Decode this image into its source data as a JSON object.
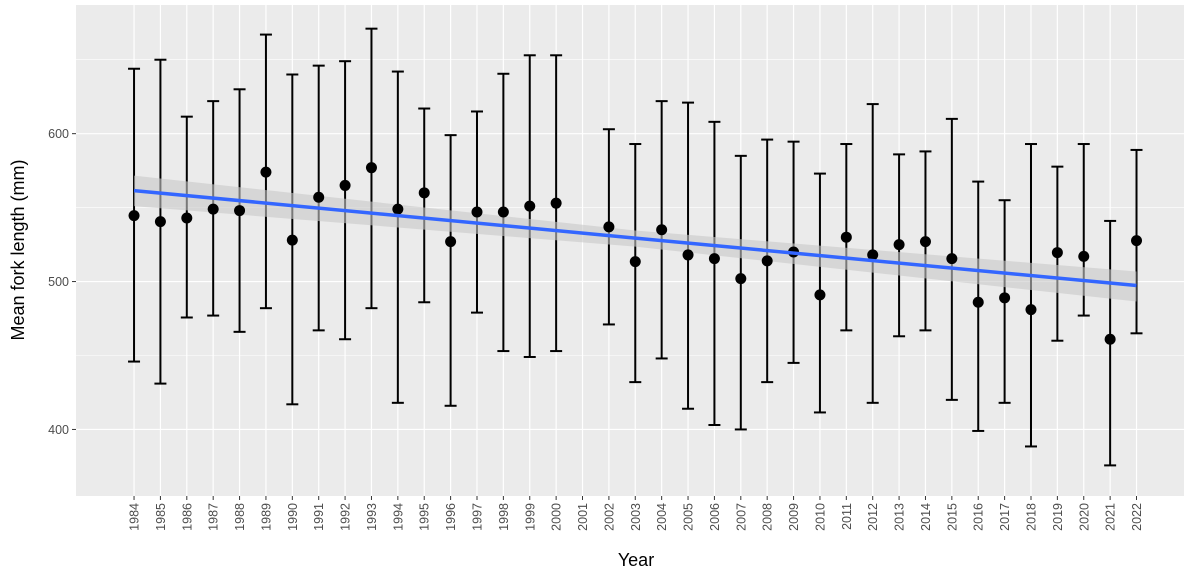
{
  "chart_data": {
    "type": "errorbar",
    "x_label": "Year",
    "y_label": "Mean fork length (mm)",
    "x": [
      1984,
      1985,
      1986,
      1987,
      1988,
      1989,
      1990,
      1991,
      1992,
      1993,
      1994,
      1995,
      1996,
      1997,
      1998,
      1999,
      2000,
      2002,
      2003,
      2004,
      2005,
      2006,
      2007,
      2008,
      2009,
      2010,
      2011,
      2012,
      2013,
      2014,
      2015,
      2016,
      2017,
      2018,
      2019,
      2020,
      2021,
      2022
    ],
    "values": [
      544.6,
      540.5,
      543,
      549,
      548,
      574,
      528,
      557,
      565,
      577,
      549,
      560,
      527,
      547,
      547,
      551,
      553,
      537,
      513.5,
      535,
      518,
      515.5,
      502,
      514,
      520,
      491,
      530,
      518,
      525,
      527,
      515.5,
      486,
      489,
      481,
      519.6,
      517,
      461,
      527.7
    ],
    "upper": [
      643.9,
      650,
      611.5,
      622,
      630,
      667,
      640,
      646,
      649,
      671,
      642,
      617,
      599,
      615,
      640.5,
      653,
      653,
      603,
      593,
      622,
      621,
      608,
      585,
      596,
      594.6,
      573,
      593,
      620,
      586,
      588,
      610,
      567.6,
      555,
      593,
      577.7,
      593,
      541,
      589
    ],
    "lower": [
      445.9,
      431,
      475.7,
      477,
      466,
      482,
      417,
      467,
      461,
      482,
      418,
      486,
      416,
      479,
      453,
      449,
      453,
      471,
      432,
      448,
      414,
      403,
      400,
      432,
      445,
      411.5,
      467,
      418,
      463,
      467,
      420,
      399,
      418,
      388.5,
      460,
      477,
      375.7,
      465
    ],
    "color": "#000000",
    "trend": {
      "x": [
        1984,
        2003,
        2022
      ],
      "values": [
        561.5,
        529.4,
        497.3
      ],
      "lower": [
        551,
        523.6,
        486.5
      ],
      "upper": [
        571.6,
        534.5,
        506.8
      ],
      "color": "#3366ff",
      "band_color": "#c8c8c8"
    },
    "xlim": [
      1981.8,
      2023.8
    ],
    "ylim": [
      355,
      687
    ],
    "xticks": [
      1984,
      1985,
      1986,
      1987,
      1988,
      1989,
      1990,
      1991,
      1992,
      1993,
      1994,
      1995,
      1996,
      1997,
      1998,
      1999,
      2000,
      2001,
      2002,
      2003,
      2004,
      2005,
      2006,
      2007,
      2008,
      2009,
      2010,
      2011,
      2012,
      2013,
      2014,
      2015,
      2016,
      2017,
      2018,
      2019,
      2020,
      2021,
      2022
    ],
    "yticks": [
      400,
      500,
      600
    ],
    "yminor": [
      450,
      550,
      650
    ],
    "grid": true,
    "panel_color": "#ebebeb"
  }
}
